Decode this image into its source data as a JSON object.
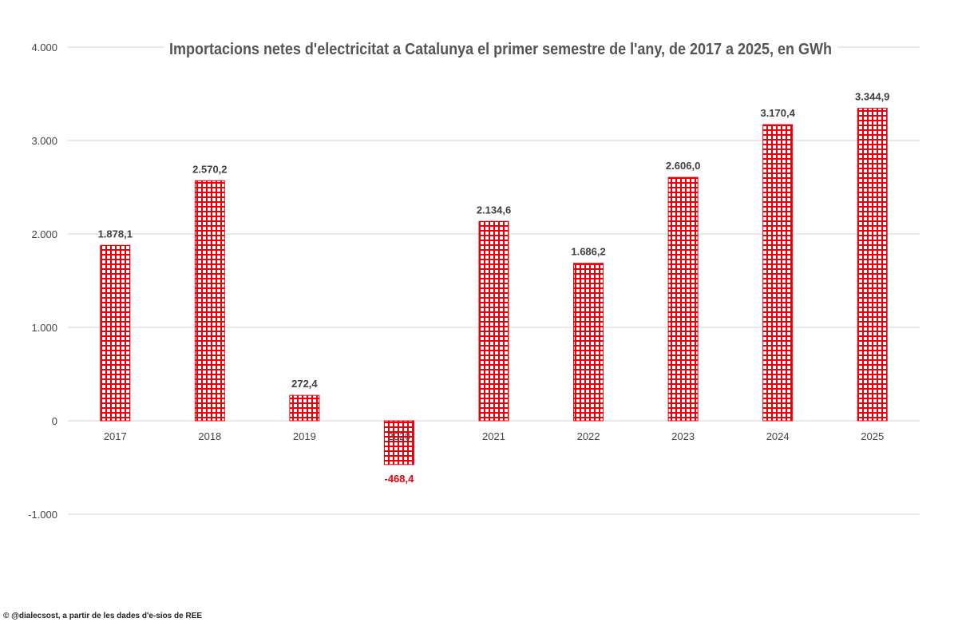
{
  "chart_data": {
    "type": "bar",
    "title": "Importacions netes d'electricitat  a Catalunya el primer semestre de l'any, de 2017 a 2025, en GWh",
    "categories": [
      "2017",
      "2018",
      "2019",
      "2020",
      "2021",
      "2022",
      "2023",
      "2024",
      "2025"
    ],
    "values": [
      1878.1,
      2570.2,
      272.4,
      -468.4,
      2134.6,
      1686.2,
      2606.0,
      3170.4,
      3344.9
    ],
    "data_labels": [
      "1.878,1",
      "2.570,2",
      "272,4",
      "-468,4",
      "2.134,6",
      "1.686,2",
      "2.606,0",
      "3.170,4",
      "3.344,9"
    ],
    "yticks": [
      -1000,
      0,
      1000,
      2000,
      3000,
      4000
    ],
    "ytick_labels": [
      "-1.000",
      "0",
      "1.000",
      "2.000",
      "3.000",
      "4.000"
    ],
    "ylim": [
      -1000,
      4000
    ],
    "xlabel": "",
    "ylabel": "",
    "grid": true,
    "legend": "none",
    "bar_color": "#e8000b",
    "negative_label_color": "#e8000b",
    "bar_fill": "grid-hatch"
  },
  "footer": {
    "credit": "© @dialecsost, a partir de les dades d'e-sios de REE"
  }
}
